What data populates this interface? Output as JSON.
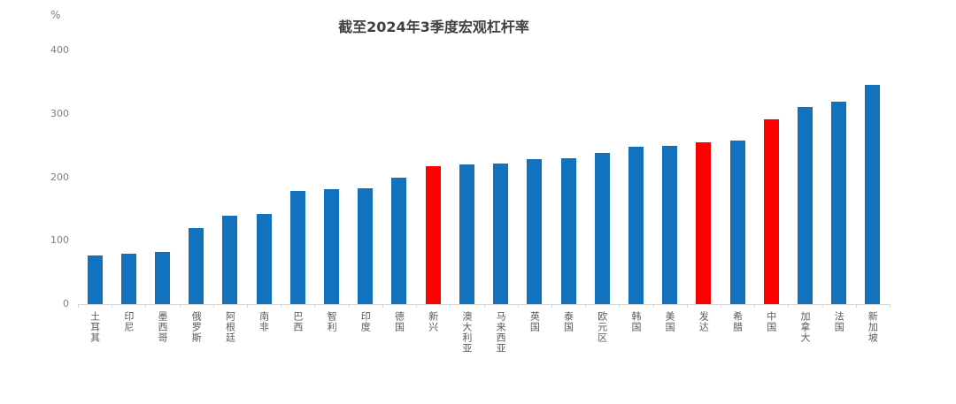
{
  "chart_data": {
    "type": "bar",
    "title": "截至2024年3季度宏观杠杆率",
    "unit_label": "%",
    "categories": [
      "土耳其",
      "印尼",
      "墨西哥",
      "俄罗斯",
      "阿根廷",
      "南非",
      "巴西",
      "智利",
      "印度",
      "德国",
      "新兴",
      "澳大利亚",
      "马来西亚",
      "英国",
      "泰国",
      "欧元区",
      "韩国",
      "美国",
      "发达",
      "希腊",
      "中国",
      "加拿大",
      "法国",
      "新加坡"
    ],
    "values": [
      77,
      80,
      82,
      120,
      140,
      142,
      178,
      181,
      182,
      200,
      217,
      220,
      222,
      228,
      230,
      238,
      248,
      249,
      255,
      258,
      291,
      311,
      319,
      346
    ],
    "highlighted_categories": [
      "新兴",
      "发达",
      "中国"
    ],
    "bar_color": "#1272BD",
    "highlight_color": "#FF0000",
    "ylabel": "",
    "xlabel": "",
    "ylim": [
      0,
      400
    ],
    "yticks": [
      0,
      100,
      200,
      300,
      400
    ],
    "grid": false,
    "legend_position": "none",
    "tick_color": "#7f7f7f",
    "category_label_color": "#595959"
  }
}
